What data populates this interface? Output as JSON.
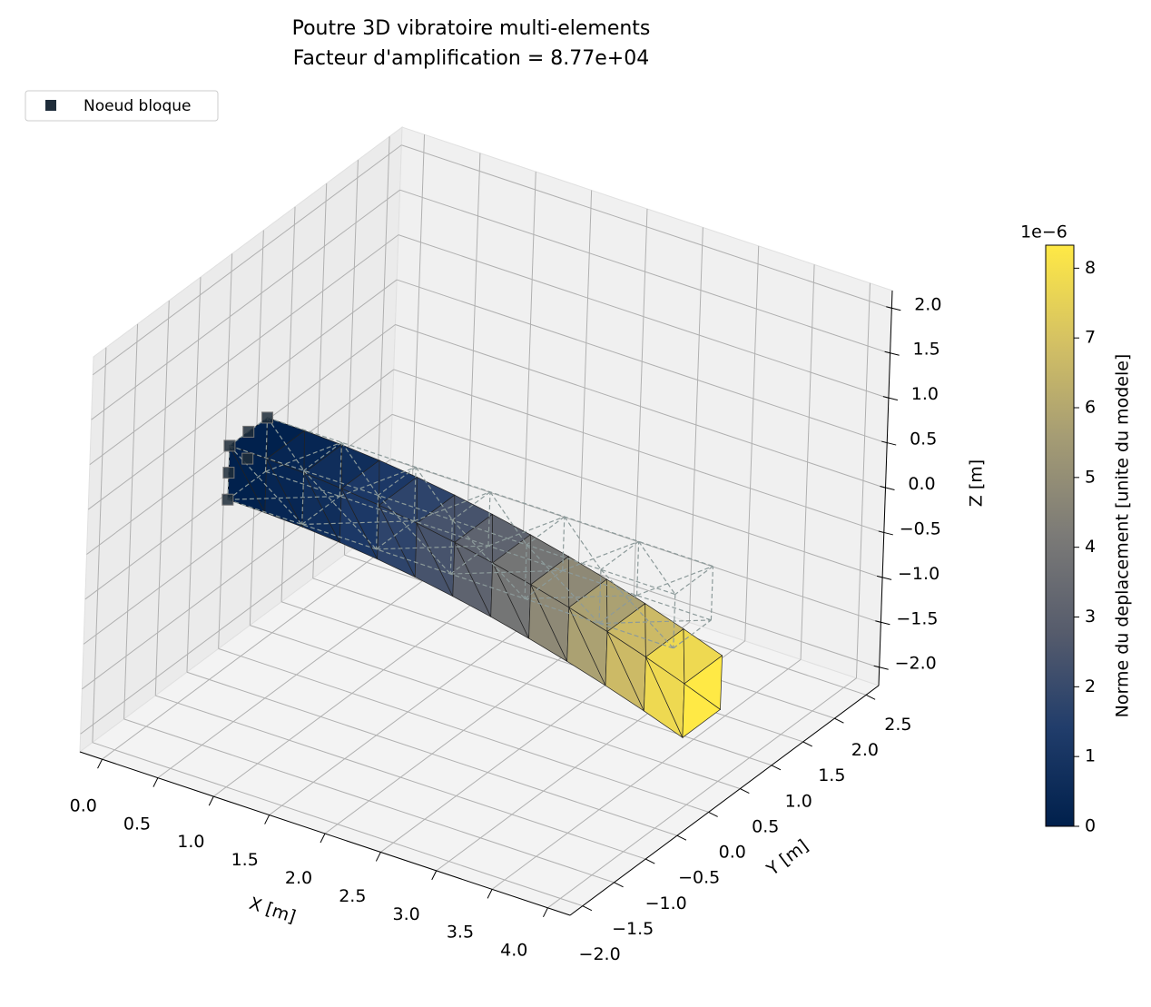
{
  "chart_data": {
    "type": "surface3d",
    "title": "Poutre 3D vibratoire multi-elements",
    "subtitle": "Facteur d'amplification = 8.77e+04",
    "series": [
      {
        "name": "Noeud bloque",
        "color": "#1f2d3a"
      }
    ],
    "x_label": "X [m]",
    "y_label": "Y [m]",
    "z_label": "Z [m]",
    "xlim": [
      -0.2,
      4.2
    ],
    "xticks": [
      {
        "value": 0,
        "label": "0.0"
      },
      {
        "value": 0.5,
        "label": "0.5"
      },
      {
        "value": 1,
        "label": "1.0"
      },
      {
        "value": 1.5,
        "label": "1.5"
      },
      {
        "value": 2,
        "label": "2.0"
      },
      {
        "value": 2.5,
        "label": "2.5"
      },
      {
        "value": 3,
        "label": "3.0"
      },
      {
        "value": 3.5,
        "label": "3.5"
      },
      {
        "value": 4,
        "label": "4.0"
      }
    ],
    "ylim": [
      -2.2,
      2.7
    ],
    "yticks": [
      {
        "value": -2,
        "label": "−2.0"
      },
      {
        "value": -1.5,
        "label": "−1.5"
      },
      {
        "value": -1,
        "label": "−1.0"
      },
      {
        "value": -0.5,
        "label": "−0.5"
      },
      {
        "value": 0,
        "label": "0.0"
      },
      {
        "value": 0.5,
        "label": "0.5"
      },
      {
        "value": 1,
        "label": "1.0"
      },
      {
        "value": 1.5,
        "label": "1.5"
      },
      {
        "value": 2,
        "label": "2.0"
      },
      {
        "value": 2.5,
        "label": "2.5"
      }
    ],
    "zlim": [
      -2.2,
      2.2
    ],
    "zticks": [
      {
        "value": -2,
        "label": "−2.0"
      },
      {
        "value": -1.5,
        "label": "−1.5"
      },
      {
        "value": -1,
        "label": "−1.0"
      },
      {
        "value": -0.5,
        "label": "−0.5"
      },
      {
        "value": 0,
        "label": "0.0"
      },
      {
        "value": 0.5,
        "label": "0.5"
      },
      {
        "value": 1,
        "label": "1.0"
      },
      {
        "value": 1.5,
        "label": "1.5"
      },
      {
        "value": 2,
        "label": "2.0"
      }
    ],
    "colorbar": {
      "label": "Norme du deplacement [unite du modele]",
      "offset": "1e−6",
      "clim": [
        0,
        8.33
      ],
      "ticks": [
        0,
        1,
        2,
        3,
        4,
        5,
        6,
        7,
        8
      ]
    },
    "grid": true
  }
}
